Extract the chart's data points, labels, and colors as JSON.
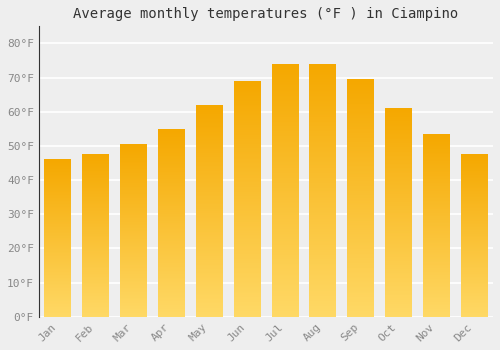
{
  "title": "Average monthly temperatures (°F ) in Ciampino",
  "months": [
    "Jan",
    "Feb",
    "Mar",
    "Apr",
    "May",
    "Jun",
    "Jul",
    "Aug",
    "Sep",
    "Oct",
    "Nov",
    "Dec"
  ],
  "values": [
    46,
    47.5,
    50.5,
    55,
    62,
    69,
    74,
    74,
    69.5,
    61,
    53.5,
    47.5
  ],
  "bar_color_top": "#F5A800",
  "bar_color_bottom": "#FFD966",
  "ylim": [
    0,
    85
  ],
  "yticks": [
    0,
    10,
    20,
    30,
    40,
    50,
    60,
    70,
    80
  ],
  "ytick_labels": [
    "0°F",
    "10°F",
    "20°F",
    "30°F",
    "40°F",
    "50°F",
    "60°F",
    "70°F",
    "80°F"
  ],
  "background_color": "#eeeeee",
  "grid_color": "#ffffff",
  "title_fontsize": 10,
  "tick_fontsize": 8,
  "bar_width": 0.7
}
